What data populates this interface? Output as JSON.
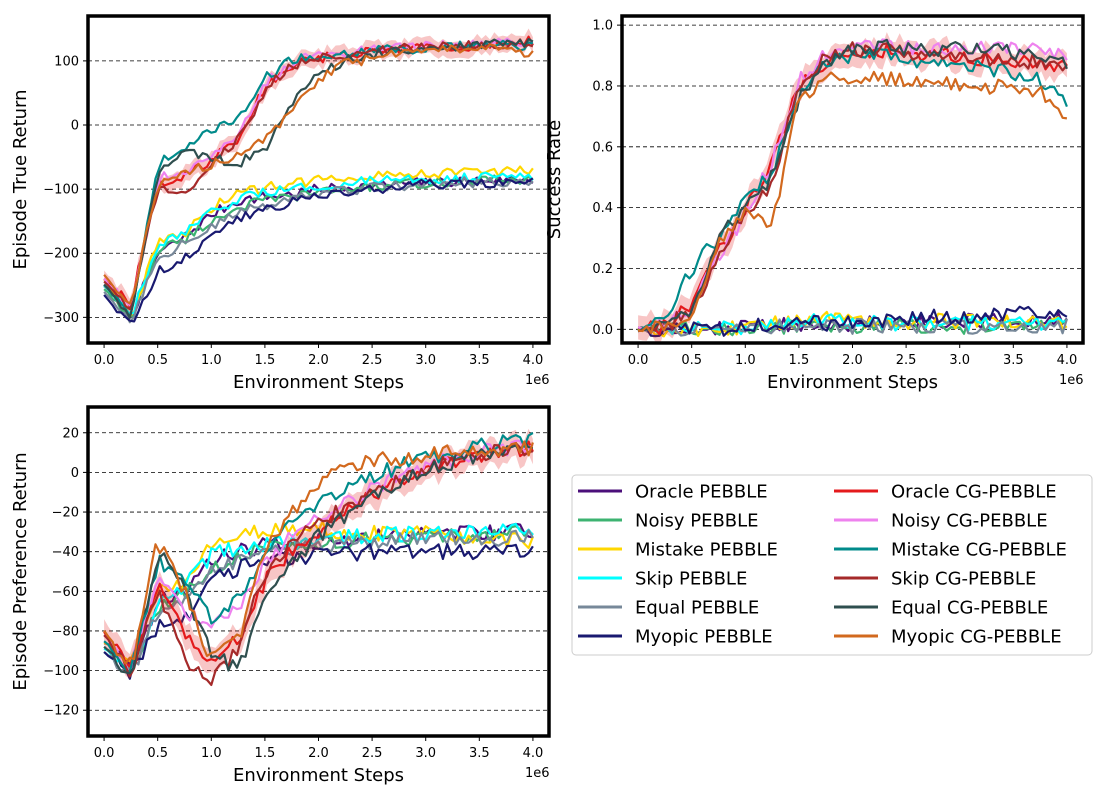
{
  "colors": {
    "Oracle PEBBLE": "#4b0f7a",
    "Noisy PEBBLE": "#3cb371",
    "Mistake PEBBLE": "#ffd700",
    "Skip PEBBLE": "#00ffff",
    "Equal PEBBLE": "#778899",
    "Myopic PEBBLE": "#191970",
    "Oracle CG-PEBBLE": "#e41a1c",
    "Noisy CG-PEBBLE": "#ee82ee",
    "Mistake CG-PEBBLE": "#008b8b",
    "Skip CG-PEBBLE": "#a52a2a",
    "Equal CG-PEBBLE": "#2f4f4f",
    "Myopic CG-PEBBLE": "#d2691e"
  },
  "legend": {
    "placement": "lower-right (empty fourth panel)",
    "columns": [
      [
        "Oracle PEBBLE",
        "Noisy PEBBLE",
        "Mistake PEBBLE",
        "Skip PEBBLE",
        "Equal PEBBLE",
        "Myopic PEBBLE"
      ],
      [
        "Oracle CG-PEBBLE",
        "Noisy CG-PEBBLE",
        "Mistake CG-PEBBLE",
        "Skip CG-PEBBLE",
        "Equal CG-PEBBLE",
        "Myopic CG-PEBBLE"
      ]
    ]
  },
  "chart_data": [
    {
      "type": "line",
      "xlabel": "Environment Steps",
      "ylabel": "Episode True Return",
      "x_multiplier": "1e6",
      "xlim": [
        -0.15,
        4.15
      ],
      "ylim": [
        -340,
        170
      ],
      "xticks": [
        0.0,
        0.5,
        1.0,
        1.5,
        2.0,
        2.5,
        3.0,
        3.5,
        4.0
      ],
      "xtick_labels": [
        "0.0",
        "0.5",
        "1.0",
        "1.5",
        "2.0",
        "2.5",
        "3.0",
        "3.5",
        "4.0"
      ],
      "yticks": [
        -300,
        -200,
        -100,
        0,
        100
      ],
      "ytick_labels": [
        "−300",
        "−200",
        "−100",
        "0",
        "100"
      ],
      "grid": "horizontal dashed",
      "x": [
        0.0,
        0.25,
        0.5,
        0.75,
        1.0,
        1.25,
        1.5,
        1.75,
        2.0,
        2.25,
        2.5,
        2.75,
        3.0,
        3.25,
        3.5,
        3.75,
        4.0
      ],
      "series": [
        {
          "name": "Oracle PEBBLE",
          "values": [
            -250,
            -300,
            -200,
            -175,
            -140,
            -118,
            -112,
            -108,
            -100,
            -97,
            -95,
            -92,
            -90,
            -88,
            -86,
            -85,
            -84
          ]
        },
        {
          "name": "Noisy PEBBLE",
          "values": [
            -255,
            -305,
            -195,
            -178,
            -150,
            -128,
            -118,
            -112,
            -105,
            -100,
            -96,
            -93,
            -90,
            -88,
            -87,
            -86,
            -85
          ]
        },
        {
          "name": "Mistake PEBBLE",
          "values": [
            -240,
            -298,
            -185,
            -170,
            -130,
            -105,
            -98,
            -92,
            -85,
            -80,
            -78,
            -76,
            -75,
            -74,
            -73,
            -72,
            -72
          ]
        },
        {
          "name": "Skip PEBBLE",
          "values": [
            -250,
            -300,
            -190,
            -170,
            -138,
            -115,
            -106,
            -100,
            -94,
            -90,
            -88,
            -86,
            -84,
            -83,
            -82,
            -81,
            -80
          ]
        },
        {
          "name": "Equal PEBBLE",
          "values": [
            -260,
            -305,
            -205,
            -185,
            -160,
            -138,
            -125,
            -115,
            -108,
            -103,
            -98,
            -95,
            -92,
            -90,
            -89,
            -88,
            -87
          ]
        },
        {
          "name": "Myopic PEBBLE",
          "values": [
            -265,
            -310,
            -230,
            -205,
            -175,
            -145,
            -130,
            -120,
            -112,
            -106,
            -100,
            -96,
            -93,
            -91,
            -90,
            -89,
            -88
          ]
        },
        {
          "name": "Oracle CG-PEBBLE",
          "values": [
            -240,
            -280,
            -90,
            -80,
            -55,
            -20,
            60,
            95,
            105,
            110,
            115,
            118,
            120,
            122,
            125,
            128,
            130
          ]
        },
        {
          "name": "Noisy CG-PEBBLE",
          "values": [
            -240,
            -285,
            -85,
            -70,
            -50,
            -15,
            65,
            98,
            108,
            112,
            116,
            120,
            122,
            124,
            126,
            128,
            129
          ]
        },
        {
          "name": "Mistake CG-PEBBLE",
          "values": [
            -250,
            -295,
            -60,
            -35,
            -10,
            10,
            75,
            100,
            110,
            113,
            116,
            118,
            120,
            122,
            124,
            126,
            122
          ]
        },
        {
          "name": "Skip CG-PEBBLE",
          "values": [
            -245,
            -290,
            -100,
            -105,
            -60,
            -25,
            55,
            92,
            104,
            110,
            114,
            118,
            121,
            123,
            125,
            127,
            128
          ]
        },
        {
          "name": "Equal CG-PEBBLE",
          "values": [
            -250,
            -295,
            -75,
            -40,
            -50,
            -60,
            -40,
            30,
            80,
            100,
            110,
            115,
            118,
            122,
            125,
            128,
            130
          ]
        },
        {
          "name": "Myopic CG-PEBBLE",
          "values": [
            -235,
            -280,
            -90,
            -75,
            -60,
            -45,
            -25,
            20,
            70,
            95,
            105,
            112,
            116,
            118,
            120,
            122,
            110
          ]
        }
      ]
    },
    {
      "type": "line",
      "xlabel": "Environment Steps",
      "ylabel": "Success Rate",
      "x_multiplier": "1e6",
      "xlim": [
        -0.15,
        4.15
      ],
      "ylim": [
        -0.045,
        1.03
      ],
      "xticks": [
        0.0,
        0.5,
        1.0,
        1.5,
        2.0,
        2.5,
        3.0,
        3.5,
        4.0
      ],
      "xtick_labels": [
        "0.0",
        "0.5",
        "1.0",
        "1.5",
        "2.0",
        "2.5",
        "3.0",
        "3.5",
        "4.0"
      ],
      "yticks": [
        0.0,
        0.2,
        0.4,
        0.6,
        0.8,
        1.0
      ],
      "ytick_labels": [
        "0.0",
        "0.2",
        "0.4",
        "0.6",
        "0.8",
        "1.0"
      ],
      "grid": "horizontal dashed",
      "x": [
        0.0,
        0.25,
        0.5,
        0.75,
        1.0,
        1.25,
        1.5,
        1.75,
        2.0,
        2.25,
        2.5,
        2.75,
        3.0,
        3.25,
        3.5,
        3.75,
        4.0
      ],
      "series": [
        {
          "name": "Oracle PEBBLE",
          "values": [
            0.0,
            0.0,
            0.0,
            0.0,
            0.01,
            0.01,
            0.02,
            0.01,
            0.02,
            0.02,
            0.02,
            0.03,
            0.03,
            0.03,
            0.03,
            0.03,
            0.03
          ]
        },
        {
          "name": "Noisy PEBBLE",
          "values": [
            0.0,
            0.0,
            0.0,
            0.0,
            0.0,
            0.01,
            0.01,
            0.01,
            0.01,
            0.01,
            0.01,
            0.01,
            0.01,
            0.01,
            0.01,
            0.01,
            0.01
          ]
        },
        {
          "name": "Mistake PEBBLE",
          "values": [
            0.0,
            0.0,
            0.0,
            0.0,
            0.01,
            0.02,
            0.03,
            0.05,
            0.03,
            0.03,
            0.02,
            0.03,
            0.02,
            0.03,
            0.02,
            0.02,
            0.02
          ]
        },
        {
          "name": "Skip PEBBLE",
          "values": [
            0.0,
            0.0,
            0.0,
            0.0,
            0.01,
            0.02,
            0.03,
            0.03,
            0.02,
            0.02,
            0.02,
            0.02,
            0.02,
            0.02,
            0.02,
            0.02,
            0.02
          ]
        },
        {
          "name": "Equal PEBBLE",
          "values": [
            0.0,
            0.0,
            0.0,
            0.0,
            0.0,
            0.01,
            0.01,
            0.01,
            0.01,
            0.01,
            0.01,
            0.01,
            0.01,
            0.01,
            0.01,
            0.01,
            0.01
          ]
        },
        {
          "name": "Myopic PEBBLE",
          "values": [
            0.0,
            0.0,
            0.0,
            0.0,
            0.01,
            0.01,
            0.02,
            0.02,
            0.02,
            0.03,
            0.03,
            0.04,
            0.04,
            0.05,
            0.05,
            0.05,
            0.05
          ]
        },
        {
          "name": "Oracle CG-PEBBLE",
          "values": [
            0.0,
            0.01,
            0.08,
            0.25,
            0.4,
            0.55,
            0.8,
            0.88,
            0.91,
            0.92,
            0.91,
            0.9,
            0.9,
            0.89,
            0.88,
            0.87,
            0.86
          ]
        },
        {
          "name": "Noisy CG-PEBBLE",
          "values": [
            0.0,
            0.01,
            0.07,
            0.24,
            0.38,
            0.55,
            0.82,
            0.9,
            0.92,
            0.93,
            0.93,
            0.92,
            0.92,
            0.93,
            0.93,
            0.92,
            0.91
          ]
        },
        {
          "name": "Mistake CG-PEBBLE",
          "values": [
            0.0,
            0.02,
            0.2,
            0.3,
            0.42,
            0.52,
            0.78,
            0.87,
            0.9,
            0.9,
            0.89,
            0.88,
            0.87,
            0.86,
            0.84,
            0.82,
            0.74
          ]
        },
        {
          "name": "Skip CG-PEBBLE",
          "values": [
            0.0,
            0.01,
            0.06,
            0.25,
            0.38,
            0.48,
            0.8,
            0.9,
            0.92,
            0.92,
            0.91,
            0.9,
            0.9,
            0.89,
            0.88,
            0.88,
            0.86
          ]
        },
        {
          "name": "Equal CG-PEBBLE",
          "values": [
            0.0,
            0.01,
            0.07,
            0.3,
            0.4,
            0.5,
            0.75,
            0.88,
            0.92,
            0.93,
            0.92,
            0.92,
            0.92,
            0.92,
            0.91,
            0.9,
            0.88
          ]
        },
        {
          "name": "Myopic CG-PEBBLE",
          "values": [
            0.0,
            0.01,
            0.06,
            0.28,
            0.4,
            0.35,
            0.75,
            0.82,
            0.82,
            0.83,
            0.82,
            0.82,
            0.81,
            0.8,
            0.79,
            0.78,
            0.7
          ]
        }
      ]
    },
    {
      "type": "line",
      "xlabel": "Environment Steps",
      "ylabel": "Episode Preference Return",
      "x_multiplier": "1e6",
      "xlim": [
        -0.15,
        4.15
      ],
      "ylim": [
        -133,
        33
      ],
      "xticks": [
        0.0,
        0.5,
        1.0,
        1.5,
        2.0,
        2.5,
        3.0,
        3.5,
        4.0
      ],
      "xtick_labels": [
        "0.0",
        "0.5",
        "1.0",
        "1.5",
        "2.0",
        "2.5",
        "3.0",
        "3.5",
        "4.0"
      ],
      "yticks": [
        -120,
        -100,
        -80,
        -60,
        -40,
        -20,
        0,
        20
      ],
      "ytick_labels": [
        "−120",
        "−100",
        "−80",
        "−60",
        "−40",
        "−20",
        "0",
        "20"
      ],
      "grid": "horizontal dashed",
      "x": [
        0.0,
        0.25,
        0.5,
        0.75,
        1.0,
        1.25,
        1.5,
        1.75,
        2.0,
        2.25,
        2.5,
        2.75,
        3.0,
        3.25,
        3.5,
        3.75,
        4.0
      ],
      "series": [
        {
          "name": "Oracle PEBBLE",
          "values": [
            -85,
            -100,
            -65,
            -60,
            -45,
            -40,
            -37,
            -36,
            -35,
            -34,
            -33,
            -32,
            -32,
            -31,
            -31,
            -30,
            -30
          ]
        },
        {
          "name": "Noisy PEBBLE",
          "values": [
            -88,
            -100,
            -68,
            -62,
            -48,
            -42,
            -39,
            -37,
            -36,
            -35,
            -34,
            -33,
            -33,
            -32,
            -32,
            -31,
            -31
          ]
        },
        {
          "name": "Mistake PEBBLE",
          "values": [
            -85,
            -98,
            -60,
            -55,
            -35,
            -30,
            -29,
            -29,
            -28,
            -30,
            -31,
            -30,
            -31,
            -32,
            -33,
            -34,
            -35
          ]
        },
        {
          "name": "Skip PEBBLE",
          "values": [
            -88,
            -100,
            -65,
            -58,
            -42,
            -38,
            -36,
            -35,
            -34,
            -33,
            -32,
            -31,
            -31,
            -30,
            -30,
            -30,
            -29
          ]
        },
        {
          "name": "Equal PEBBLE",
          "values": [
            -90,
            -102,
            -70,
            -65,
            -50,
            -44,
            -40,
            -38,
            -37,
            -36,
            -35,
            -34,
            -34,
            -33,
            -33,
            -33,
            -33
          ]
        },
        {
          "name": "Myopic PEBBLE",
          "values": [
            -90,
            -102,
            -78,
            -75,
            -55,
            -48,
            -45,
            -43,
            -42,
            -41,
            -40,
            -40,
            -40,
            -40,
            -40,
            -40,
            -40
          ]
        },
        {
          "name": "Oracle CG-PEBBLE",
          "values": [
            -80,
            -100,
            -55,
            -80,
            -95,
            -85,
            -55,
            -40,
            -30,
            -20,
            -12,
            -5,
            2,
            6,
            9,
            11,
            13
          ]
        },
        {
          "name": "Noisy CG-PEBBLE",
          "values": [
            -82,
            -100,
            -50,
            -70,
            -78,
            -70,
            -45,
            -32,
            -22,
            -15,
            -8,
            -2,
            3,
            7,
            10,
            12,
            14
          ]
        },
        {
          "name": "Mistake CG-PEBBLE",
          "values": [
            -85,
            -102,
            -45,
            -55,
            -75,
            -65,
            -40,
            -25,
            -15,
            -8,
            -2,
            3,
            7,
            10,
            13,
            15,
            17
          ]
        },
        {
          "name": "Skip CG-PEBBLE",
          "values": [
            -82,
            -100,
            -58,
            -95,
            -105,
            -90,
            -50,
            -35,
            -25,
            -18,
            -10,
            -4,
            2,
            6,
            9,
            11,
            13
          ]
        },
        {
          "name": "Equal CG-PEBBLE",
          "values": [
            -88,
            -102,
            -40,
            -60,
            -90,
            -100,
            -65,
            -45,
            -32,
            -22,
            -12,
            -5,
            1,
            5,
            8,
            10,
            12
          ]
        },
        {
          "name": "Myopic CG-PEBBLE",
          "values": [
            -80,
            -98,
            -35,
            -60,
            -95,
            -85,
            -40,
            -20,
            -5,
            3,
            6,
            7,
            9,
            10,
            11,
            12,
            12
          ]
        }
      ]
    }
  ]
}
